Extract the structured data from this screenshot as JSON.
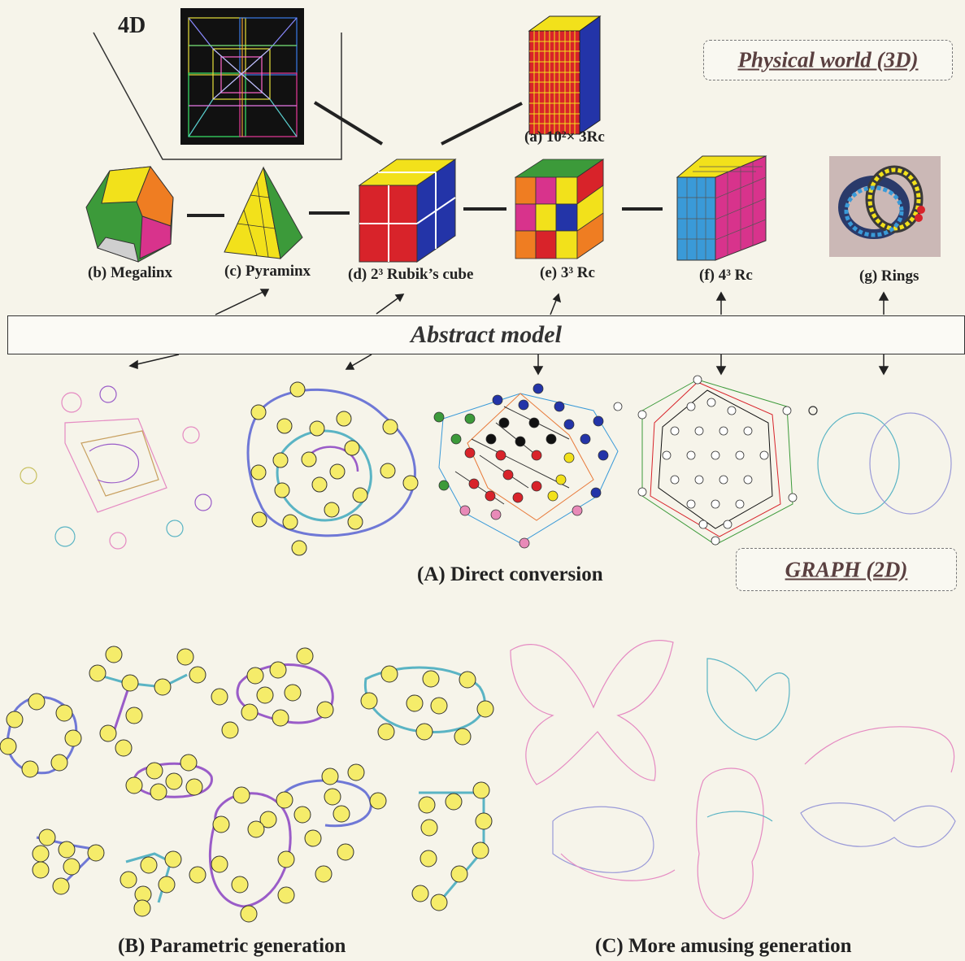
{
  "labels": {
    "four_d": "4D",
    "a": "(a) 10²× 3Rc",
    "b": "(b) Megalinx",
    "c": "(c) Pyraminx",
    "d": "(d) 2³ Rubik’s cube",
    "e": "(e) 3³ Rc",
    "f": "(f) 4³ Rc",
    "g": "(g) Rings"
  },
  "physical_world": "Physical world (3D)",
  "abstract_model": "Abstract model",
  "graph_2d": "GRAPH (2D)",
  "section_labels": {
    "A": "(A) Direct conversion",
    "B": "(B) Parametric generation",
    "C": "(C) More amusing generation"
  },
  "graph_b_nodes": [
    "1",
    "2",
    "3",
    "4",
    "5",
    "6",
    "7",
    "8",
    "9",
    "10"
  ],
  "colors": {
    "red": "#d8232a",
    "yellow": "#f2e11b",
    "blue": "#2334a8",
    "green": "#3c9a3a",
    "orange": "#ef7d22",
    "magenta": "#d8338c",
    "cyan": "#3a9ad8",
    "node_fill": "#f5ec6a",
    "edge_blue": "#6f78d6",
    "edge_teal": "#5ab4c4",
    "edge_pink": "#e58ac2",
    "edge_purple": "#9a5cc8"
  }
}
